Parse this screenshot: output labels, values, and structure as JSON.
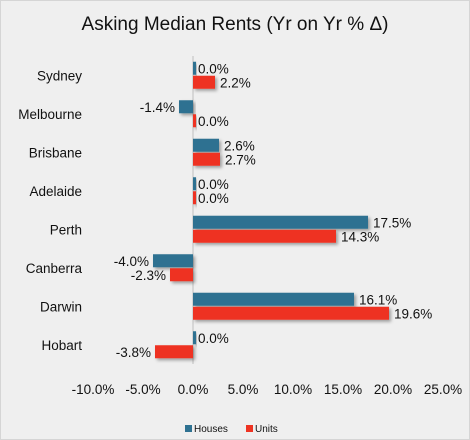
{
  "chart_data": {
    "type": "bar",
    "orientation": "horizontal",
    "title": "Asking Median Rents (Yr on Yr % Δ)",
    "categories": [
      "Sydney",
      "Melbourne",
      "Brisbane",
      "Adelaide",
      "Perth",
      "Canberra",
      "Darwin",
      "Hobart"
    ],
    "series": [
      {
        "name": "Houses",
        "color": "#2e7191",
        "values": [
          0.0,
          -1.4,
          2.6,
          0.0,
          17.5,
          -4.0,
          16.1,
          0.0
        ],
        "labels": [
          "0.0%",
          "-1.4%",
          "2.6%",
          "0.0%",
          "17.5%",
          "-4.0%",
          "16.1%",
          "0.0%"
        ]
      },
      {
        "name": "Units",
        "color": "#ee3322",
        "values": [
          2.2,
          0.0,
          2.7,
          0.0,
          14.3,
          -2.3,
          19.6,
          -3.8
        ],
        "labels": [
          "2.2%",
          "0.0%",
          "2.7%",
          "0.0%",
          "14.3%",
          "-2.3%",
          "19.6%",
          "-3.8%"
        ]
      }
    ],
    "xlim": [
      -10,
      25
    ],
    "xticks": [
      -10,
      -5,
      0,
      5,
      10,
      15,
      20,
      25
    ],
    "xtick_labels": [
      "-10.0%",
      "-5.0%",
      "0.0%",
      "5.0%",
      "10.0%",
      "15.0%",
      "20.0%",
      "25.0%"
    ],
    "grid": false,
    "legend": "bottom"
  }
}
